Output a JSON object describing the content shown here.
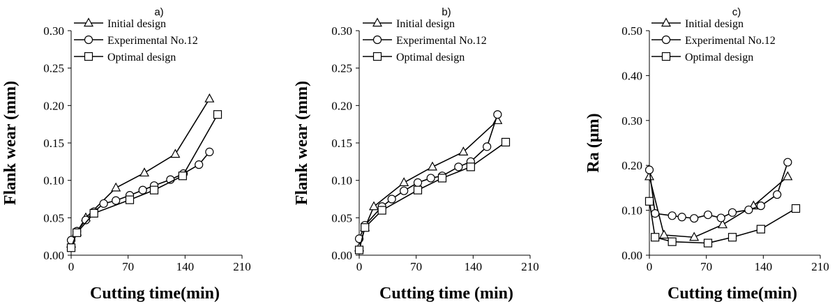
{
  "chart_data": [
    {
      "type": "line",
      "panel_label": "a)",
      "xlabel": "Cutting time(min)",
      "ylabel": "Flank wear (mm)",
      "xlim": [
        0,
        210
      ],
      "ylim": [
        0,
        0.3
      ],
      "xticks": [
        "0",
        "70",
        "140",
        "210"
      ],
      "yticks": [
        "0.00",
        "0.05",
        "0.10",
        "0.15",
        "0.20",
        "0.25",
        "0.30"
      ],
      "legend_position": "top-left",
      "series": [
        {
          "name": "Initial design",
          "marker": "triangle",
          "x": [
            0,
            7,
            18,
            55,
            90,
            128,
            170
          ],
          "y": [
            0.015,
            0.031,
            0.05,
            0.09,
            0.11,
            0.135,
            0.209
          ]
        },
        {
          "name": "Experimental No.12",
          "marker": "circle",
          "x": [
            0,
            7,
            18,
            28,
            40,
            55,
            72,
            88,
            102,
            122,
            138,
            157,
            170
          ],
          "y": [
            0.02,
            0.032,
            0.047,
            0.058,
            0.069,
            0.073,
            0.08,
            0.087,
            0.093,
            0.101,
            0.109,
            0.121,
            0.138
          ]
        },
        {
          "name": "Optimal design",
          "marker": "square",
          "x": [
            0,
            7,
            28,
            72,
            102,
            137,
            180
          ],
          "y": [
            0.01,
            0.03,
            0.056,
            0.074,
            0.087,
            0.106,
            0.188
          ]
        }
      ]
    },
    {
      "type": "line",
      "panel_label": "b)",
      "xlabel": "Cutting time (min)",
      "ylabel": "Flank wear (mm)",
      "xlim": [
        0,
        210
      ],
      "ylim": [
        0,
        0.3
      ],
      "xticks": [
        "0",
        "70",
        "140",
        "210"
      ],
      "yticks": [
        "0.00",
        "0.05",
        "0.10",
        "0.15",
        "0.20",
        "0.25",
        "0.30"
      ],
      "legend_position": "top-right",
      "series": [
        {
          "name": "Initial design",
          "marker": "triangle",
          "x": [
            0,
            7,
            18,
            55,
            90,
            128,
            170
          ],
          "y": [
            0.01,
            0.037,
            0.065,
            0.097,
            0.118,
            0.138,
            0.18
          ]
        },
        {
          "name": "Experimental No.12",
          "marker": "circle",
          "x": [
            0,
            7,
            28,
            40,
            55,
            72,
            88,
            102,
            122,
            137,
            157,
            170
          ],
          "y": [
            0.022,
            0.04,
            0.065,
            0.075,
            0.086,
            0.097,
            0.103,
            0.106,
            0.118,
            0.125,
            0.145,
            0.188
          ]
        },
        {
          "name": "Optimal design",
          "marker": "square",
          "x": [
            0,
            7,
            28,
            72,
            102,
            137,
            180
          ],
          "y": [
            0.007,
            0.037,
            0.06,
            0.087,
            0.103,
            0.118,
            0.151
          ]
        }
      ]
    },
    {
      "type": "line",
      "panel_label": "c)",
      "xlabel": "Cutting time(min)",
      "ylabel": "Ra (µm)",
      "xlim": [
        0,
        210
      ],
      "ylim": [
        0,
        0.5
      ],
      "xticks": [
        "0",
        "70",
        "140",
        "210"
      ],
      "yticks": [
        "0.00",
        "0.10",
        "0.20",
        "0.30",
        "0.40",
        "0.50"
      ],
      "legend_position": "top-right",
      "series": [
        {
          "name": "Initial design",
          "marker": "triangle",
          "x": [
            0,
            18,
            55,
            90,
            128,
            170
          ],
          "y": [
            0.175,
            0.045,
            0.04,
            0.068,
            0.11,
            0.175
          ]
        },
        {
          "name": "Experimental No.12",
          "marker": "circle",
          "x": [
            0,
            7,
            28,
            40,
            55,
            72,
            88,
            102,
            122,
            137,
            157,
            170
          ],
          "y": [
            0.19,
            0.093,
            0.088,
            0.085,
            0.082,
            0.09,
            0.083,
            0.095,
            0.101,
            0.11,
            0.135,
            0.207
          ]
        },
        {
          "name": "Optimal design",
          "marker": "square",
          "x": [
            0,
            7,
            28,
            72,
            102,
            137,
            180
          ],
          "y": [
            0.12,
            0.04,
            0.03,
            0.027,
            0.04,
            0.058,
            0.104
          ]
        }
      ]
    }
  ]
}
